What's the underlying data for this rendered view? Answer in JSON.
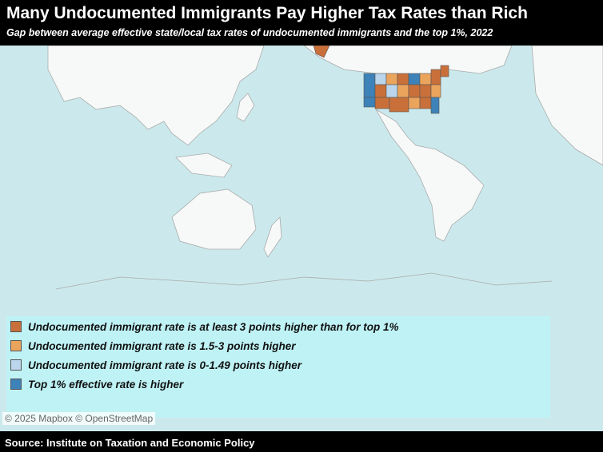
{
  "header": {
    "title": "Many Undocumented Immigrants Pay Higher Tax Rates than Rich",
    "subtitle": "Gap between average effective state/local tax rates of undocumented immigrants and the top 1%, 2022"
  },
  "legend": {
    "items": [
      {
        "label": "Undocumented immigrant rate is at least 3 points higher than for top 1%",
        "color": "#c9703a"
      },
      {
        "label": "Undocumented immigrant rate is 1.5-3 points higher",
        "color": "#eba45c"
      },
      {
        "label": "Undocumented immigrant rate is 0-1.49 points higher",
        "color": "#bad5ec"
      },
      {
        "label": "Top 1% effective rate is higher",
        "color": "#3d82b8"
      }
    ]
  },
  "attribution": "© 2025 Mapbox © OpenStreetMap",
  "footer": {
    "source": "Source: Institute on Taxation and Economic Policy"
  }
}
